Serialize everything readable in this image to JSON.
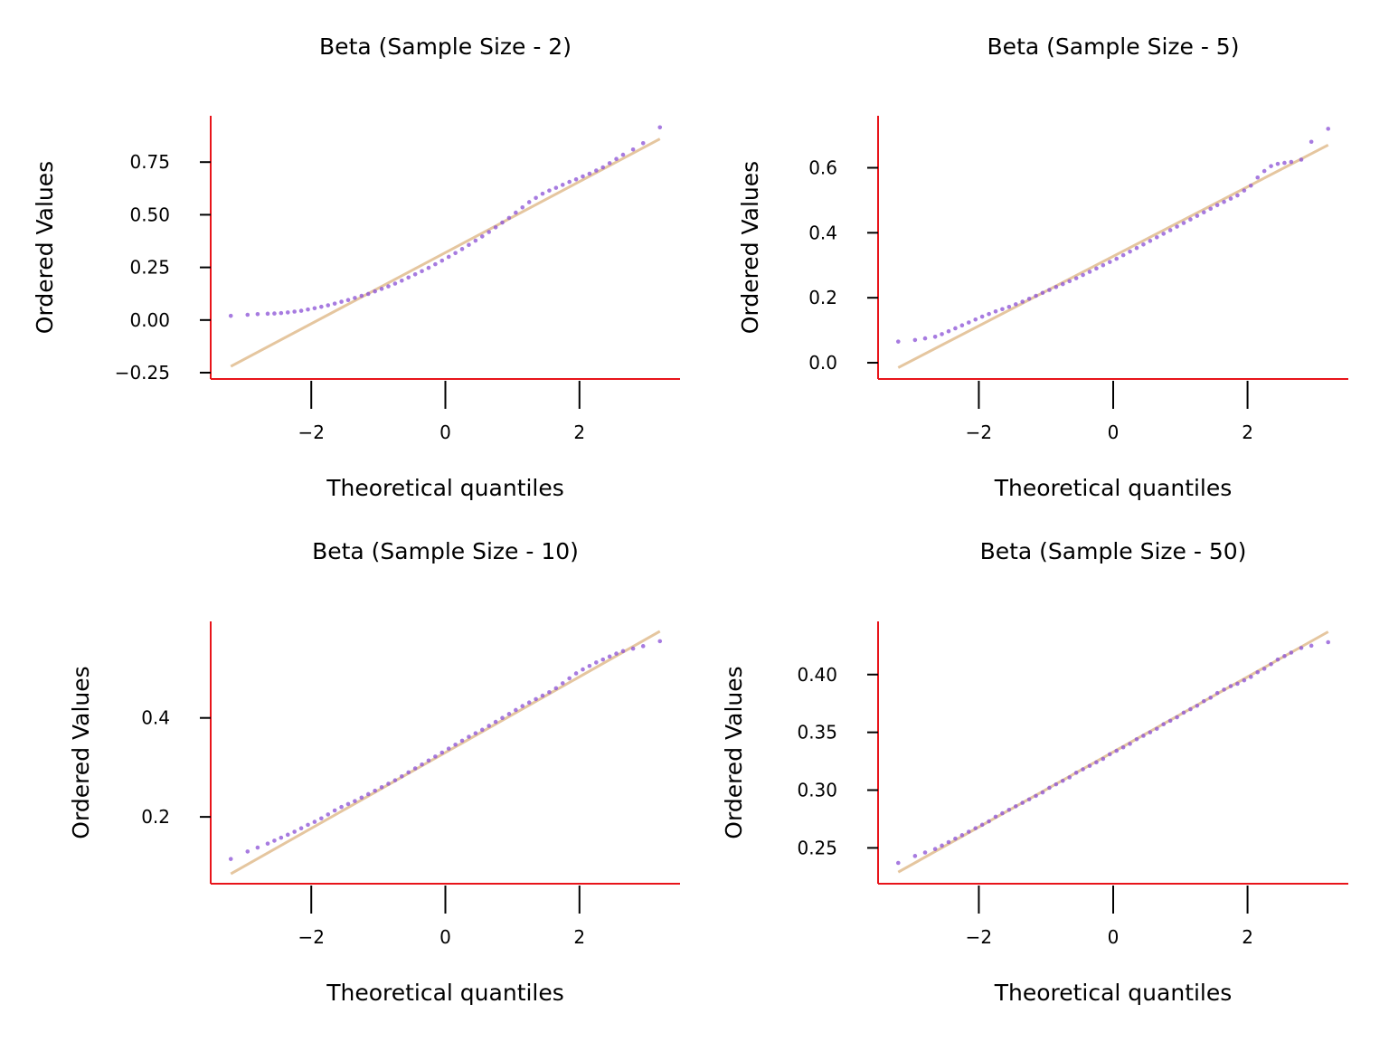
{
  "colors": {
    "spine": "#e8141a",
    "points": "#8a4fd6",
    "fit_line": "#deb887",
    "text": "#000000",
    "background": "#ffffff"
  },
  "chart_data": [
    {
      "type": "scatter",
      "title": "Beta (Sample Size - 2)",
      "xlabel": "Theoretical quantiles",
      "ylabel": "Ordered Values",
      "xlim": [
        -3.5,
        3.5
      ],
      "ylim": [
        -0.28,
        0.97
      ],
      "xticks": [
        -2,
        0,
        2
      ],
      "xtick_labels": [
        "−2",
        "0",
        "2"
      ],
      "yticks": [
        -0.25,
        0.0,
        0.25,
        0.5,
        0.75
      ],
      "ytick_labels": [
        "−0.25",
        "0.00",
        "0.25",
        "0.50",
        "0.75"
      ],
      "grid": false,
      "fit_line": {
        "x": [
          -3.2,
          3.2
        ],
        "y": [
          -0.22,
          0.86
        ]
      },
      "points": {
        "x": [
          -3.2,
          -2.95,
          -2.8,
          -2.65,
          -2.55,
          -2.45,
          -2.35,
          -2.25,
          -2.15,
          -2.05,
          -1.95,
          -1.85,
          -1.75,
          -1.65,
          -1.55,
          -1.45,
          -1.35,
          -1.25,
          -1.15,
          -1.05,
          -0.95,
          -0.85,
          -0.75,
          -0.65,
          -0.55,
          -0.45,
          -0.35,
          -0.25,
          -0.15,
          -0.05,
          0.05,
          0.15,
          0.25,
          0.35,
          0.45,
          0.55,
          0.65,
          0.75,
          0.85,
          0.95,
          1.05,
          1.15,
          1.25,
          1.35,
          1.45,
          1.55,
          1.65,
          1.75,
          1.85,
          1.95,
          2.05,
          2.15,
          2.25,
          2.35,
          2.45,
          2.55,
          2.65,
          2.8,
          2.95,
          3.2
        ],
        "y": [
          0.02,
          0.025,
          0.028,
          0.03,
          0.031,
          0.033,
          0.036,
          0.04,
          0.044,
          0.05,
          0.056,
          0.063,
          0.07,
          0.078,
          0.087,
          0.095,
          0.105,
          0.115,
          0.124,
          0.136,
          0.148,
          0.16,
          0.173,
          0.187,
          0.202,
          0.217,
          0.232,
          0.248,
          0.265,
          0.282,
          0.3,
          0.318,
          0.337,
          0.357,
          0.377,
          0.397,
          0.418,
          0.44,
          0.463,
          0.485,
          0.51,
          0.535,
          0.56,
          0.58,
          0.6,
          0.615,
          0.628,
          0.642,
          0.656,
          0.668,
          0.682,
          0.695,
          0.71,
          0.725,
          0.745,
          0.765,
          0.785,
          0.81,
          0.84,
          0.915
        ]
      }
    },
    {
      "type": "scatter",
      "title": "Beta (Sample Size - 5)",
      "xlabel": "Theoretical quantiles",
      "ylabel": "Ordered Values",
      "xlim": [
        -3.5,
        3.5
      ],
      "ylim": [
        -0.05,
        0.76
      ],
      "xticks": [
        -2,
        0,
        2
      ],
      "xtick_labels": [
        "−2",
        "0",
        "2"
      ],
      "yticks": [
        0.0,
        0.2,
        0.4,
        0.6
      ],
      "ytick_labels": [
        "0.0",
        "0.2",
        "0.4",
        "0.6"
      ],
      "grid": false,
      "fit_line": {
        "x": [
          -3.2,
          3.2
        ],
        "y": [
          -0.015,
          0.67
        ]
      },
      "points": {
        "x": [
          -3.2,
          -2.95,
          -2.8,
          -2.65,
          -2.55,
          -2.45,
          -2.35,
          -2.25,
          -2.15,
          -2.05,
          -1.95,
          -1.85,
          -1.75,
          -1.65,
          -1.55,
          -1.45,
          -1.35,
          -1.25,
          -1.15,
          -1.05,
          -0.95,
          -0.85,
          -0.75,
          -0.65,
          -0.55,
          -0.45,
          -0.35,
          -0.25,
          -0.15,
          -0.05,
          0.05,
          0.15,
          0.25,
          0.35,
          0.45,
          0.55,
          0.65,
          0.75,
          0.85,
          0.95,
          1.05,
          1.15,
          1.25,
          1.35,
          1.45,
          1.55,
          1.65,
          1.75,
          1.85,
          1.95,
          2.05,
          2.15,
          2.25,
          2.35,
          2.45,
          2.55,
          2.65,
          2.8,
          2.95,
          3.2
        ],
        "y": [
          0.065,
          0.07,
          0.075,
          0.08,
          0.088,
          0.097,
          0.106,
          0.115,
          0.124,
          0.133,
          0.142,
          0.15,
          0.158,
          0.165,
          0.172,
          0.18,
          0.188,
          0.197,
          0.206,
          0.215,
          0.224,
          0.233,
          0.242,
          0.251,
          0.26,
          0.27,
          0.28,
          0.29,
          0.3,
          0.31,
          0.32,
          0.331,
          0.342,
          0.353,
          0.364,
          0.375,
          0.386,
          0.397,
          0.408,
          0.419,
          0.43,
          0.441,
          0.452,
          0.463,
          0.474,
          0.485,
          0.495,
          0.505,
          0.515,
          0.53,
          0.545,
          0.57,
          0.59,
          0.605,
          0.612,
          0.615,
          0.618,
          0.625,
          0.68,
          0.72
        ]
      }
    },
    {
      "type": "scatter",
      "title": "Beta (Sample Size - 10)",
      "xlabel": "Theoretical quantiles",
      "ylabel": "Ordered Values",
      "xlim": [
        -3.5,
        3.5
      ],
      "ylim": [
        0.065,
        0.595
      ],
      "xticks": [
        -2,
        0,
        2
      ],
      "xtick_labels": [
        "−2",
        "0",
        "2"
      ],
      "yticks": [
        0.2,
        0.4
      ],
      "ytick_labels": [
        "0.2",
        "0.4"
      ],
      "grid": false,
      "fit_line": {
        "x": [
          -3.2,
          3.2
        ],
        "y": [
          0.085,
          0.575
        ]
      },
      "points": {
        "x": [
          -3.2,
          -2.95,
          -2.8,
          -2.65,
          -2.55,
          -2.45,
          -2.35,
          -2.25,
          -2.15,
          -2.05,
          -1.95,
          -1.85,
          -1.75,
          -1.65,
          -1.55,
          -1.45,
          -1.35,
          -1.25,
          -1.15,
          -1.05,
          -0.95,
          -0.85,
          -0.75,
          -0.65,
          -0.55,
          -0.45,
          -0.35,
          -0.25,
          -0.15,
          -0.05,
          0.05,
          0.15,
          0.25,
          0.35,
          0.45,
          0.55,
          0.65,
          0.75,
          0.85,
          0.95,
          1.05,
          1.15,
          1.25,
          1.35,
          1.45,
          1.55,
          1.65,
          1.75,
          1.85,
          1.95,
          2.05,
          2.15,
          2.25,
          2.35,
          2.45,
          2.55,
          2.65,
          2.8,
          2.95,
          3.2
        ],
        "y": [
          0.115,
          0.13,
          0.138,
          0.146,
          0.152,
          0.158,
          0.164,
          0.17,
          0.177,
          0.184,
          0.19,
          0.197,
          0.205,
          0.213,
          0.22,
          0.226,
          0.232,
          0.239,
          0.246,
          0.253,
          0.26,
          0.267,
          0.274,
          0.282,
          0.29,
          0.298,
          0.306,
          0.314,
          0.322,
          0.33,
          0.338,
          0.346,
          0.354,
          0.362,
          0.369,
          0.376,
          0.384,
          0.392,
          0.4,
          0.408,
          0.416,
          0.424,
          0.431,
          0.438,
          0.445,
          0.452,
          0.46,
          0.47,
          0.48,
          0.49,
          0.498,
          0.505,
          0.512,
          0.518,
          0.524,
          0.53,
          0.535,
          0.54,
          0.545,
          0.555
        ]
      }
    },
    {
      "type": "scatter",
      "title": "Beta (Sample Size - 50)",
      "xlabel": "Theoretical quantiles",
      "ylabel": "Ordered Values",
      "xlim": [
        -3.5,
        3.5
      ],
      "ylim": [
        0.219,
        0.446
      ],
      "xticks": [
        -2,
        0,
        2
      ],
      "xtick_labels": [
        "−2",
        "0",
        "2"
      ],
      "yticks": [
        0.25,
        0.3,
        0.35,
        0.4
      ],
      "ytick_labels": [
        "0.25",
        "0.30",
        "0.35",
        "0.40"
      ],
      "grid": false,
      "fit_line": {
        "x": [
          -3.2,
          3.2
        ],
        "y": [
          0.229,
          0.437
        ]
      },
      "points": {
        "x": [
          -3.2,
          -2.95,
          -2.8,
          -2.65,
          -2.55,
          -2.45,
          -2.35,
          -2.25,
          -2.15,
          -2.05,
          -1.95,
          -1.85,
          -1.75,
          -1.65,
          -1.55,
          -1.45,
          -1.35,
          -1.25,
          -1.15,
          -1.05,
          -0.95,
          -0.85,
          -0.75,
          -0.65,
          -0.55,
          -0.45,
          -0.35,
          -0.25,
          -0.15,
          -0.05,
          0.05,
          0.15,
          0.25,
          0.35,
          0.45,
          0.55,
          0.65,
          0.75,
          0.85,
          0.95,
          1.05,
          1.15,
          1.25,
          1.35,
          1.45,
          1.55,
          1.65,
          1.75,
          1.85,
          1.95,
          2.05,
          2.15,
          2.25,
          2.35,
          2.45,
          2.55,
          2.65,
          2.8,
          2.95,
          3.2
        ],
        "y": [
          0.237,
          0.243,
          0.246,
          0.249,
          0.252,
          0.255,
          0.258,
          0.261,
          0.264,
          0.267,
          0.27,
          0.273,
          0.277,
          0.28,
          0.283,
          0.286,
          0.289,
          0.292,
          0.295,
          0.298,
          0.302,
          0.305,
          0.308,
          0.311,
          0.315,
          0.318,
          0.321,
          0.324,
          0.327,
          0.331,
          0.334,
          0.337,
          0.34,
          0.344,
          0.347,
          0.35,
          0.353,
          0.357,
          0.36,
          0.363,
          0.367,
          0.37,
          0.373,
          0.377,
          0.38,
          0.384,
          0.387,
          0.39,
          0.392,
          0.395,
          0.398,
          0.402,
          0.405,
          0.409,
          0.413,
          0.416,
          0.419,
          0.423,
          0.425,
          0.428
        ]
      }
    }
  ]
}
